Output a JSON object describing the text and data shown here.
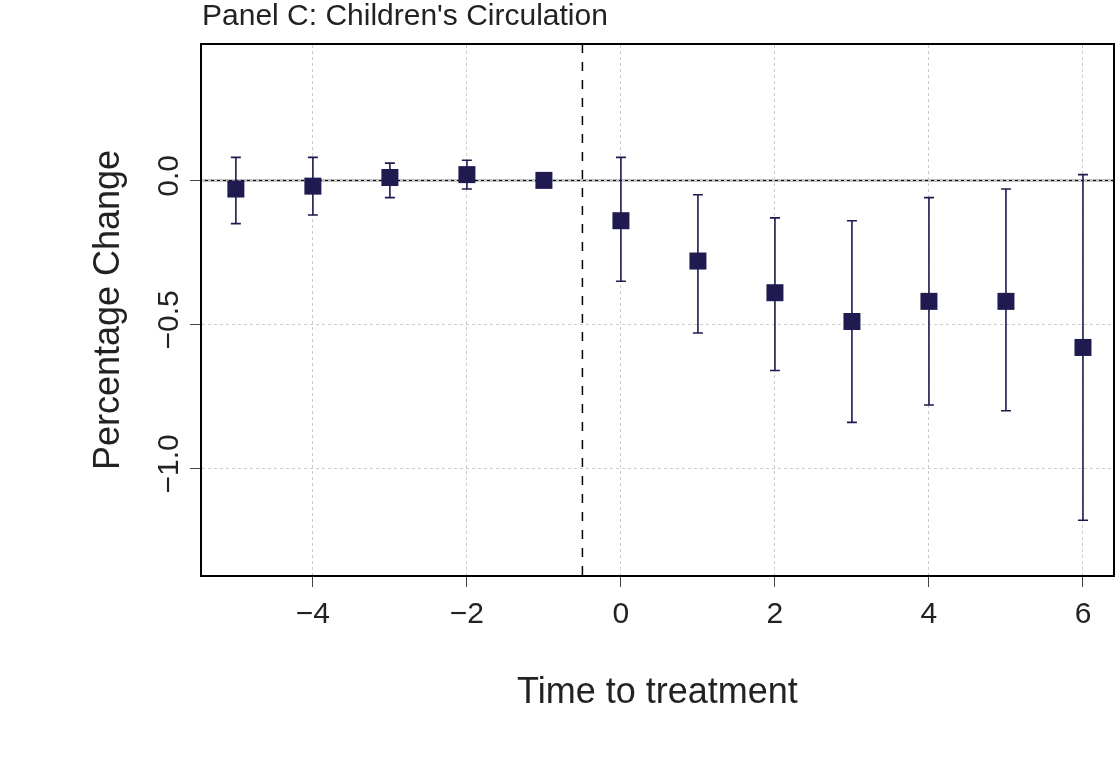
{
  "chart_data": {
    "type": "scatter",
    "title": "Panel C: Children's Circulation",
    "xlabel": "Time to treatment",
    "ylabel": "Percentage Change",
    "x": [
      -5,
      -4,
      -3,
      -2,
      -1,
      0,
      1,
      2,
      3,
      4,
      5,
      6
    ],
    "series": [
      {
        "color": "#1f1a4f",
        "values": [
          -0.03,
          -0.02,
          0.01,
          0.02,
          0.0,
          -0.14,
          -0.28,
          -0.39,
          -0.49,
          -0.42,
          -0.42,
          -0.58
        ],
        "errors": [
          [
            -0.15,
            0.08
          ],
          [
            -0.12,
            0.08
          ],
          [
            -0.06,
            0.06
          ],
          [
            -0.03,
            0.07
          ],
          null,
          [
            -0.35,
            0.08
          ],
          [
            -0.53,
            -0.05
          ],
          [
            -0.66,
            -0.13
          ],
          [
            -0.84,
            -0.14
          ],
          [
            -0.78,
            -0.06
          ],
          [
            -0.8,
            -0.03
          ],
          [
            -1.18,
            0.02
          ]
        ]
      }
    ],
    "marker": "square",
    "xlim": [
      -5.44,
      6.39
    ],
    "ylim": [
      -1.37,
      0.47
    ],
    "xticks": [
      {
        "value": -4,
        "label": "−4"
      },
      {
        "value": -2,
        "label": "−2"
      },
      0,
      2,
      4,
      6
    ],
    "yticks": [
      {
        "value": 0,
        "label": "0.0"
      },
      {
        "value": -0.5,
        "label": "−0.5"
      },
      {
        "value": -1.0,
        "label": "−1.0"
      }
    ],
    "grid": true,
    "ref_lines": [
      {
        "axis": "y",
        "value": 0,
        "color": "#000000",
        "line_style": "solid"
      },
      {
        "axis": "x",
        "value": -0.5,
        "color": "#000000",
        "line_style": "dashed"
      }
    ]
  }
}
